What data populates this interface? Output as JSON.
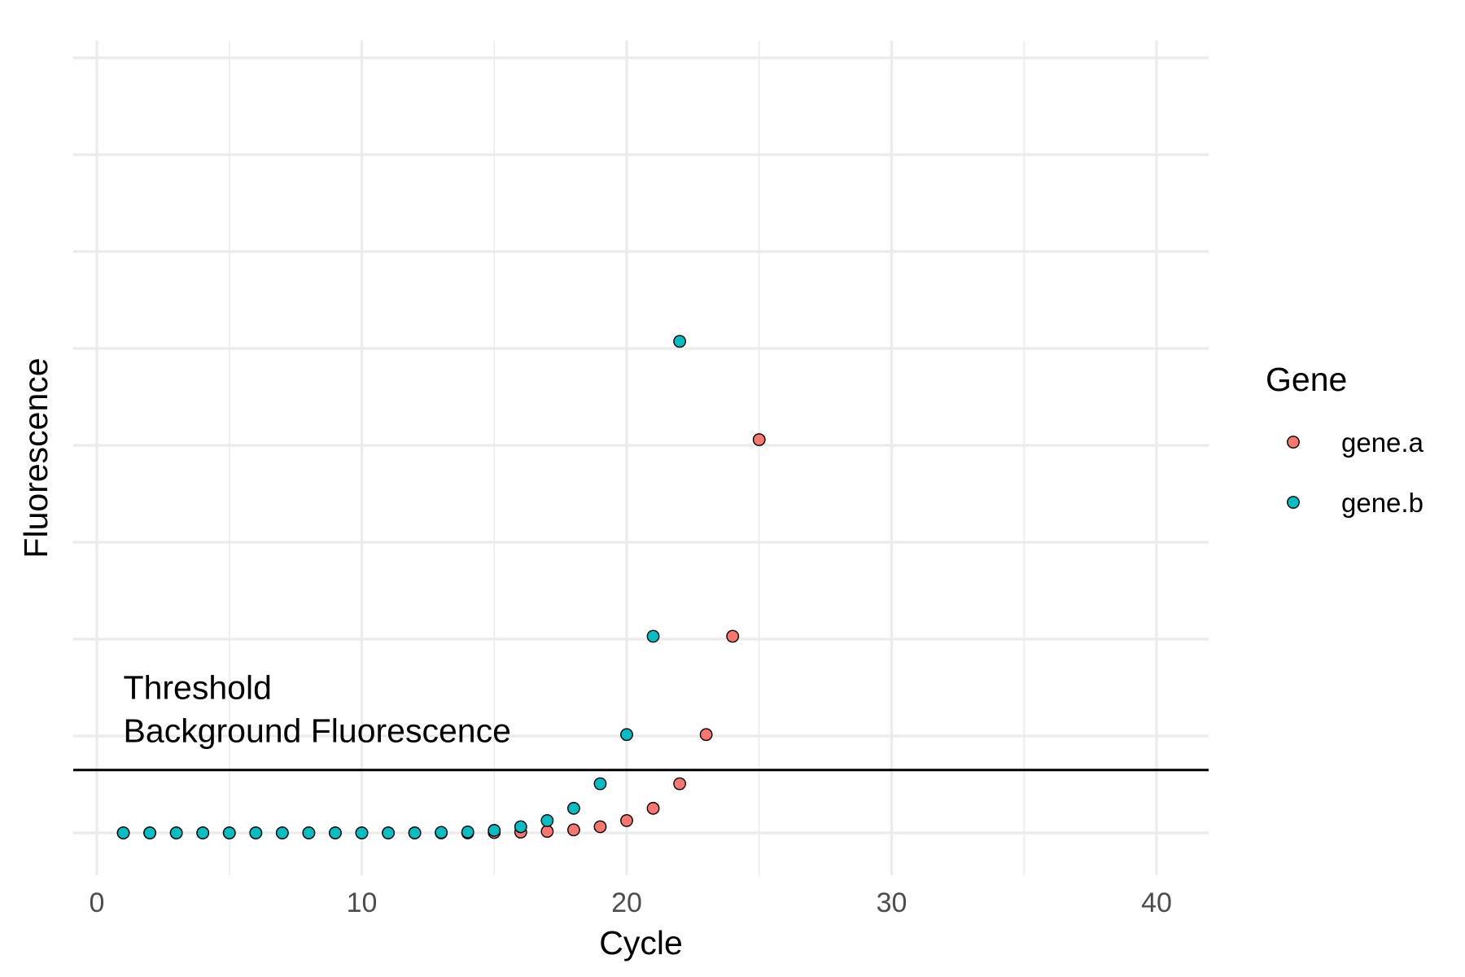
{
  "chart_data": {
    "type": "scatter",
    "title": "",
    "xlabel": "Cycle",
    "ylabel": "Fluorescence",
    "xlim": [
      -1,
      42
    ],
    "x_ticks": [
      0,
      10,
      20,
      30,
      40
    ],
    "x_tick_labels": [
      "0",
      "10",
      "20",
      "30",
      "40"
    ],
    "y_tick_labels_shown": false,
    "grid": true,
    "threshold_line": 0.16,
    "annotations": [
      {
        "text": "Threshold",
        "x": 1,
        "y": 0.37
      },
      {
        "text": "Background Fluorescence",
        "x": 1,
        "y": 0.26
      }
    ],
    "legend": {
      "title": "Gene",
      "position": "right"
    },
    "series": [
      {
        "name": "gene.a",
        "color": "#F8766D",
        "x": [
          1,
          2,
          3,
          4,
          5,
          6,
          7,
          8,
          9,
          10,
          11,
          12,
          13,
          14,
          15,
          16,
          17,
          18,
          19,
          20,
          21,
          22,
          23,
          24,
          25
        ],
        "y": [
          0,
          0,
          0,
          0,
          0,
          0,
          0,
          0,
          0,
          0,
          0,
          0,
          0,
          0,
          0.001,
          0.002,
          0.0039,
          0.0078,
          0.0156,
          0.0313,
          0.0625,
          0.125,
          0.25,
          0.5,
          1.0
        ]
      },
      {
        "name": "gene.b",
        "color": "#00BFC4",
        "x": [
          1,
          2,
          3,
          4,
          5,
          6,
          7,
          8,
          9,
          10,
          11,
          12,
          13,
          14,
          15,
          16,
          17,
          18,
          19,
          20,
          21,
          22
        ],
        "y": [
          0,
          0,
          0,
          0,
          0,
          0,
          0,
          0,
          0,
          0,
          0,
          0,
          0.0012,
          0.0024,
          0.0063,
          0.0156,
          0.0313,
          0.0625,
          0.125,
          0.25,
          0.5,
          1.25
        ]
      }
    ]
  }
}
